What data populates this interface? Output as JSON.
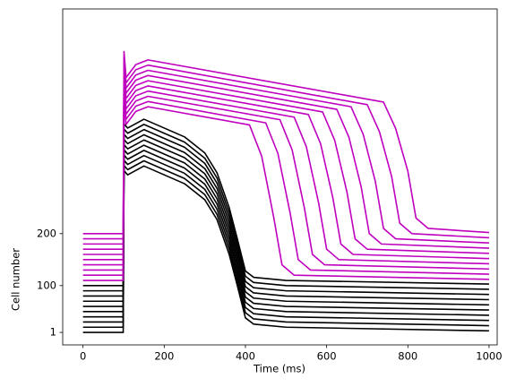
{
  "chart_data": {
    "type": "line",
    "xlabel": "Time (ms)",
    "ylabel": "Cell number",
    "xlim": [
      -50,
      1020
    ],
    "ylim": [
      -24,
      622
    ],
    "xticks": [
      0,
      200,
      400,
      600,
      800,
      1000
    ],
    "yticks": [
      {
        "value": 0,
        "label": "1"
      },
      {
        "value": 90,
        "label": "100"
      },
      {
        "value": 190,
        "label": "200"
      }
    ],
    "grid": false,
    "series": [
      {
        "color": "#000000",
        "x": [
          0,
          99,
          101,
          110,
          150,
          250,
          300,
          330,
          360,
          380,
          400,
          420,
          500,
          1000
        ],
        "values": [
          0,
          0,
          311,
          303,
          320,
          286,
          255,
          217,
          150,
          90,
          28,
          16,
          10,
          3
        ]
      },
      {
        "color": "#000000",
        "x": [
          0,
          99,
          101,
          110,
          150,
          250,
          300,
          330,
          360,
          380,
          400,
          420,
          500,
          1000
        ],
        "values": [
          10,
          10,
          321,
          313,
          330,
          296,
          265,
          227,
          160,
          100,
          38,
          26,
          20,
          13
        ]
      },
      {
        "color": "#000000",
        "x": [
          0,
          99,
          101,
          110,
          150,
          250,
          300,
          330,
          360,
          380,
          400,
          420,
          500,
          1000
        ],
        "values": [
          20,
          20,
          331,
          323,
          340,
          306,
          275,
          237,
          170,
          110,
          48,
          36,
          30,
          23
        ]
      },
      {
        "color": "#000000",
        "x": [
          0,
          99,
          101,
          110,
          150,
          250,
          300,
          330,
          360,
          380,
          400,
          420,
          500,
          1000
        ],
        "values": [
          30,
          30,
          341,
          333,
          350,
          316,
          285,
          247,
          180,
          120,
          58,
          46,
          40,
          33
        ]
      },
      {
        "color": "#000000",
        "x": [
          0,
          99,
          101,
          110,
          150,
          250,
          300,
          330,
          360,
          380,
          400,
          420,
          500,
          1000
        ],
        "values": [
          40,
          40,
          351,
          343,
          360,
          326,
          295,
          257,
          190,
          130,
          68,
          56,
          50,
          43
        ]
      },
      {
        "color": "#000000",
        "x": [
          0,
          99,
          101,
          110,
          150,
          250,
          300,
          330,
          360,
          380,
          400,
          420,
          500,
          1000
        ],
        "values": [
          50,
          50,
          361,
          353,
          370,
          336,
          305,
          267,
          200,
          140,
          78,
          66,
          60,
          53
        ]
      },
      {
        "color": "#000000",
        "x": [
          0,
          99,
          101,
          110,
          150,
          250,
          300,
          330,
          360,
          380,
          400,
          420,
          500,
          1000
        ],
        "values": [
          60,
          60,
          371,
          363,
          380,
          346,
          315,
          277,
          210,
          150,
          88,
          76,
          70,
          63
        ]
      },
      {
        "color": "#000000",
        "x": [
          0,
          99,
          101,
          110,
          150,
          250,
          300,
          330,
          360,
          380,
          400,
          420,
          500,
          1000
        ],
        "values": [
          70,
          70,
          381,
          373,
          390,
          356,
          325,
          287,
          220,
          160,
          98,
          86,
          80,
          73
        ]
      },
      {
        "color": "#000000",
        "x": [
          0,
          99,
          101,
          110,
          150,
          250,
          300,
          330,
          360,
          380,
          400,
          420,
          500,
          1000
        ],
        "values": [
          80,
          80,
          391,
          383,
          400,
          366,
          335,
          297,
          230,
          170,
          108,
          96,
          90,
          83
        ]
      },
      {
        "color": "#000000",
        "x": [
          0,
          99,
          101,
          110,
          150,
          250,
          300,
          330,
          360,
          380,
          400,
          420,
          500,
          1000
        ],
        "values": [
          90,
          90,
          401,
          393,
          410,
          376,
          345,
          307,
          240,
          180,
          118,
          106,
          100,
          93
        ]
      },
      {
        "color": "#bf00bf",
        "x": [
          0,
          99,
          101,
          106,
          130,
          160,
          310,
          410,
          440,
          470,
          490,
          520,
          1000
        ],
        "values": [
          100,
          100,
          450,
          400,
          425,
          434,
          413,
          399,
          339,
          220,
          130,
          110,
          102
        ]
      },
      {
        "color": "#bf00bf",
        "x": [
          0,
          99,
          101,
          106,
          130,
          160,
          350,
          450,
          480,
          510,
          530,
          560,
          1000
        ],
        "values": [
          110,
          110,
          460,
          410,
          435,
          444,
          417,
          403,
          344,
          230,
          140,
          120,
          112
        ]
      },
      {
        "color": "#bf00bf",
        "x": [
          0,
          99,
          101,
          106,
          130,
          160,
          385,
          485,
          515,
          545,
          565,
          595,
          1000
        ],
        "values": [
          120,
          120,
          470,
          420,
          445,
          454,
          423,
          409,
          351,
          240,
          150,
          130,
          122
        ]
      },
      {
        "color": "#bf00bf",
        "x": [
          0,
          99,
          101,
          106,
          130,
          160,
          420,
          520,
          550,
          580,
          600,
          630,
          1000
        ],
        "values": [
          130,
          130,
          480,
          430,
          455,
          464,
          428,
          414,
          357,
          250,
          160,
          140,
          132
        ]
      },
      {
        "color": "#bf00bf",
        "x": [
          0,
          99,
          101,
          106,
          130,
          160,
          455,
          555,
          585,
          615,
          635,
          665,
          1000
        ],
        "values": [
          140,
          140,
          490,
          440,
          465,
          474,
          433,
          419,
          363,
          260,
          170,
          150,
          142
        ]
      },
      {
        "color": "#bf00bf",
        "x": [
          0,
          99,
          101,
          106,
          130,
          160,
          490,
          590,
          620,
          650,
          670,
          700,
          1000
        ],
        "values": [
          150,
          150,
          500,
          450,
          475,
          484,
          438,
          424,
          369,
          270,
          180,
          160,
          152
        ]
      },
      {
        "color": "#bf00bf",
        "x": [
          0,
          99,
          101,
          106,
          130,
          160,
          525,
          625,
          655,
          685,
          705,
          735,
          1000
        ],
        "values": [
          160,
          160,
          510,
          460,
          485,
          494,
          443,
          429,
          375,
          280,
          190,
          170,
          162
        ]
      },
      {
        "color": "#bf00bf",
        "x": [
          0,
          99,
          101,
          106,
          130,
          160,
          560,
          660,
          690,
          720,
          740,
          770,
          1000
        ],
        "values": [
          170,
          170,
          520,
          470,
          495,
          504,
          448,
          434,
          381,
          290,
          200,
          180,
          172
        ]
      },
      {
        "color": "#bf00bf",
        "x": [
          0,
          99,
          101,
          106,
          130,
          160,
          600,
          700,
          730,
          760,
          780,
          810,
          1000
        ],
        "values": [
          180,
          180,
          530,
          480,
          505,
          514,
          452,
          438,
          386,
          300,
          210,
          190,
          182
        ]
      },
      {
        "color": "#bf00bf",
        "x": [
          0,
          99,
          101,
          106,
          130,
          160,
          640,
          740,
          770,
          800,
          820,
          850,
          1000
        ],
        "values": [
          190,
          190,
          540,
          490,
          515,
          524,
          457,
          443,
          392,
          310,
          220,
          200,
          192
        ]
      }
    ]
  }
}
